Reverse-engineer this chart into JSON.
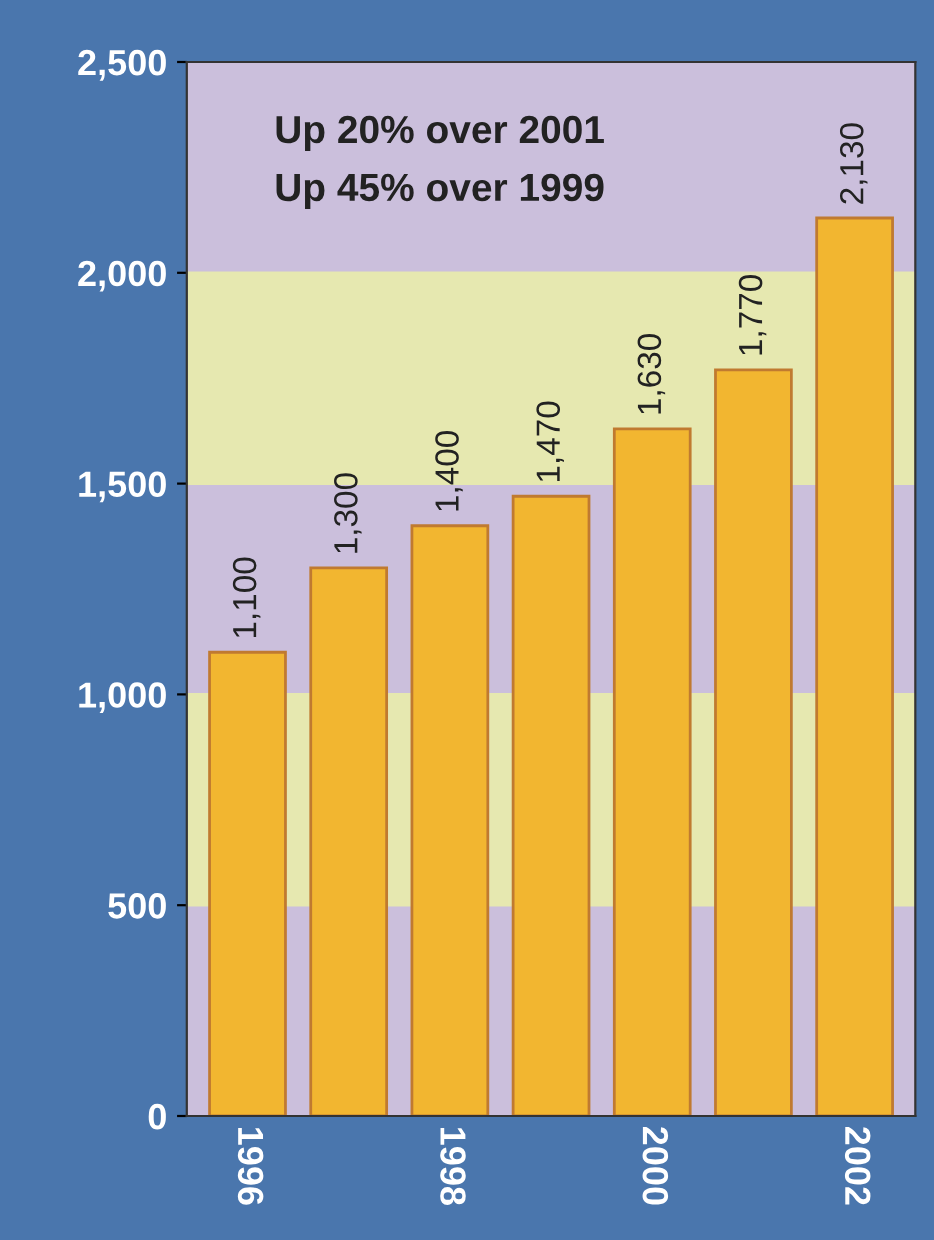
{
  "chart_data": {
    "type": "bar",
    "categories": [
      "1996",
      null,
      "1998",
      null,
      "2000",
      null,
      "2002"
    ],
    "values": [
      1100,
      1300,
      1400,
      1470,
      1630,
      1770,
      2130
    ],
    "value_labels": [
      "1,100",
      "1,300",
      "1,400",
      "1,470",
      "1,630",
      "1,770",
      "2,130"
    ],
    "color": "#f2b630",
    "ylim": [
      0,
      2500
    ],
    "yticks": [
      {
        "value": 0,
        "label": "0"
      },
      {
        "value": 500,
        "label": "500"
      },
      {
        "value": 1000,
        "label": "1,000"
      },
      {
        "value": 1500,
        "label": "1,500"
      },
      {
        "value": 2000,
        "label": "2,000"
      },
      {
        "value": 2500,
        "label": "2,500"
      }
    ],
    "bands": [
      {
        "axis": "y",
        "from": 500,
        "to": 1000,
        "color": "#e6e8b0"
      },
      {
        "axis": "y",
        "from": 1500,
        "to": 2000,
        "color": "#e6e8b0"
      }
    ],
    "annotations": [
      "Up 20% over 2001",
      "Up 45% over 1999"
    ],
    "grid": false,
    "legend": false
  }
}
